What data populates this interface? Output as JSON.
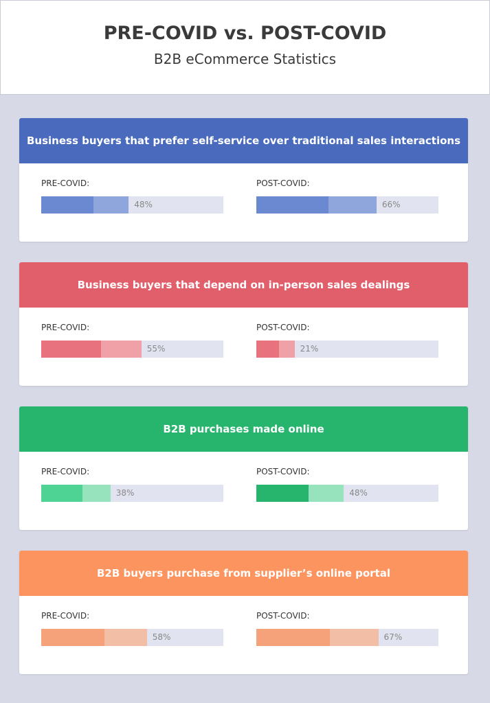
{
  "header": {
    "title": "PRE-COVID vs. POST-COVID",
    "subtitle": "B2B eCommerce Statistics"
  },
  "sections": [
    {
      "title": "Business buyers that prefer self-service over traditional sales interactions",
      "color": "#4a6bbd",
      "bar_dark": "#6a89d0",
      "bar_light": "#8fa6dc",
      "pre": {
        "label": "PRE-COVID:",
        "value": 48,
        "value_label": "48%"
      },
      "post": {
        "label": "POST-COVID:",
        "value": 66,
        "value_label": "66%"
      }
    },
    {
      "title": "Business buyers that depend on in-person sales dealings",
      "color": "#e05f6b",
      "bar_dark": "#e8737e",
      "bar_light": "#f0a1a8",
      "pre": {
        "label": "PRE-COVID:",
        "value": 55,
        "value_label": "55%"
      },
      "post": {
        "label": "POST-COVID:",
        "value": 21,
        "value_label": "21%"
      }
    },
    {
      "title": "B2B purchases made online",
      "color": "#27b56e",
      "bar_dark": "#4fd394",
      "bar_light": "#97e3bd",
      "pre": {
        "label": "PRE-COVID:",
        "value": 38,
        "value_label": "38%"
      },
      "post": {
        "label": "POST-COVID:",
        "value": 48,
        "value_label": "48%",
        "bar_dark": "#27b56e"
      }
    },
    {
      "title": "B2B buyers purchase from supplier’s online portal",
      "color": "#fc945f",
      "bar_dark": "#f5a27a",
      "bar_light": "#f2bfa6",
      "pre": {
        "label": "PRE-COVID:",
        "value": 58,
        "value_label": "58%"
      },
      "post": {
        "label": "POST-COVID:",
        "value": 67,
        "value_label": "67%"
      }
    }
  ]
}
